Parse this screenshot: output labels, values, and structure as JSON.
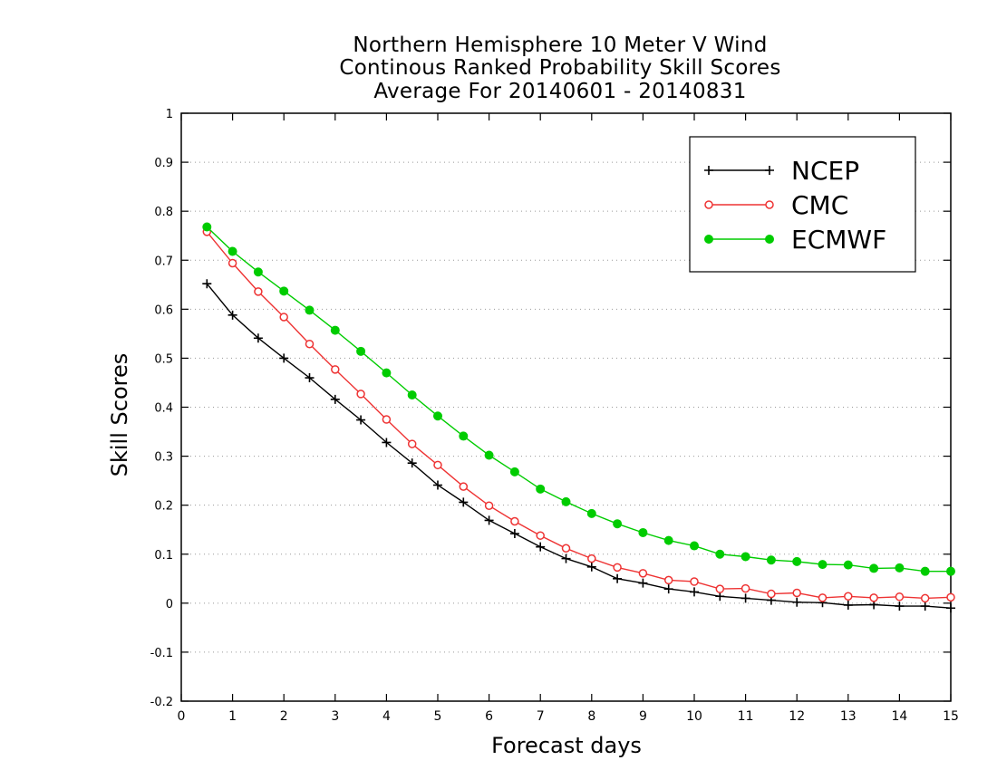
{
  "chart_data": {
    "type": "line",
    "title": [
      "Northern Hemisphere 10 Meter V Wind",
      "Continous Ranked Probability Skill Scores",
      "Average For 20140601 - 20140831"
    ],
    "xlabel": "Forecast days",
    "ylabel": "Skill Scores",
    "xlim": [
      0,
      15
    ],
    "ylim": [
      -0.2,
      1
    ],
    "xticks": [
      "0",
      "1",
      "2",
      "3",
      "4",
      "5",
      "6",
      "7",
      "8",
      "9",
      "10",
      "11",
      "12",
      "13",
      "14",
      "15"
    ],
    "yticks": [
      "-0.2",
      "-0.1",
      "0",
      "0.1",
      "0.2",
      "0.3",
      "0.4",
      "0.5",
      "0.6",
      "0.7",
      "0.8",
      "0.9",
      "1"
    ],
    "grid": "horizontal dotted",
    "legend_position": "top-right",
    "x": [
      0.5,
      1,
      1.5,
      2,
      2.5,
      3,
      3.5,
      4,
      4.5,
      5,
      5.5,
      6,
      6.5,
      7,
      7.5,
      8,
      8.5,
      9,
      9.5,
      10,
      10.5,
      11,
      11.5,
      12,
      12.5,
      13,
      13.5,
      14,
      14.5,
      15
    ],
    "series": [
      {
        "name": "NCEP",
        "color": "#000000",
        "marker": "plus",
        "values": [
          0.652,
          0.588,
          0.541,
          0.5,
          0.46,
          0.416,
          0.374,
          0.328,
          0.286,
          0.241,
          0.206,
          0.169,
          0.142,
          0.115,
          0.091,
          0.074,
          0.05,
          0.041,
          0.029,
          0.023,
          0.014,
          0.01,
          0.006,
          0.002,
          0.001,
          -0.004,
          -0.003,
          -0.006,
          -0.006,
          -0.01
        ]
      },
      {
        "name": "CMC",
        "color": "#ee3333",
        "marker": "open-circle",
        "values": [
          0.758,
          0.694,
          0.636,
          0.584,
          0.529,
          0.477,
          0.427,
          0.375,
          0.325,
          0.282,
          0.238,
          0.199,
          0.167,
          0.138,
          0.112,
          0.091,
          0.073,
          0.061,
          0.047,
          0.044,
          0.029,
          0.03,
          0.019,
          0.021,
          0.011,
          0.014,
          0.011,
          0.013,
          0.01,
          0.012
        ]
      },
      {
        "name": "ECMWF",
        "color": "#00cc00",
        "marker": "filled-circle",
        "values": [
          0.768,
          0.718,
          0.676,
          0.637,
          0.598,
          0.557,
          0.514,
          0.47,
          0.425,
          0.382,
          0.341,
          0.302,
          0.268,
          0.233,
          0.207,
          0.183,
          0.162,
          0.144,
          0.128,
          0.117,
          0.1,
          0.095,
          0.088,
          0.085,
          0.079,
          0.078,
          0.071,
          0.072,
          0.065,
          0.065
        ]
      }
    ]
  }
}
